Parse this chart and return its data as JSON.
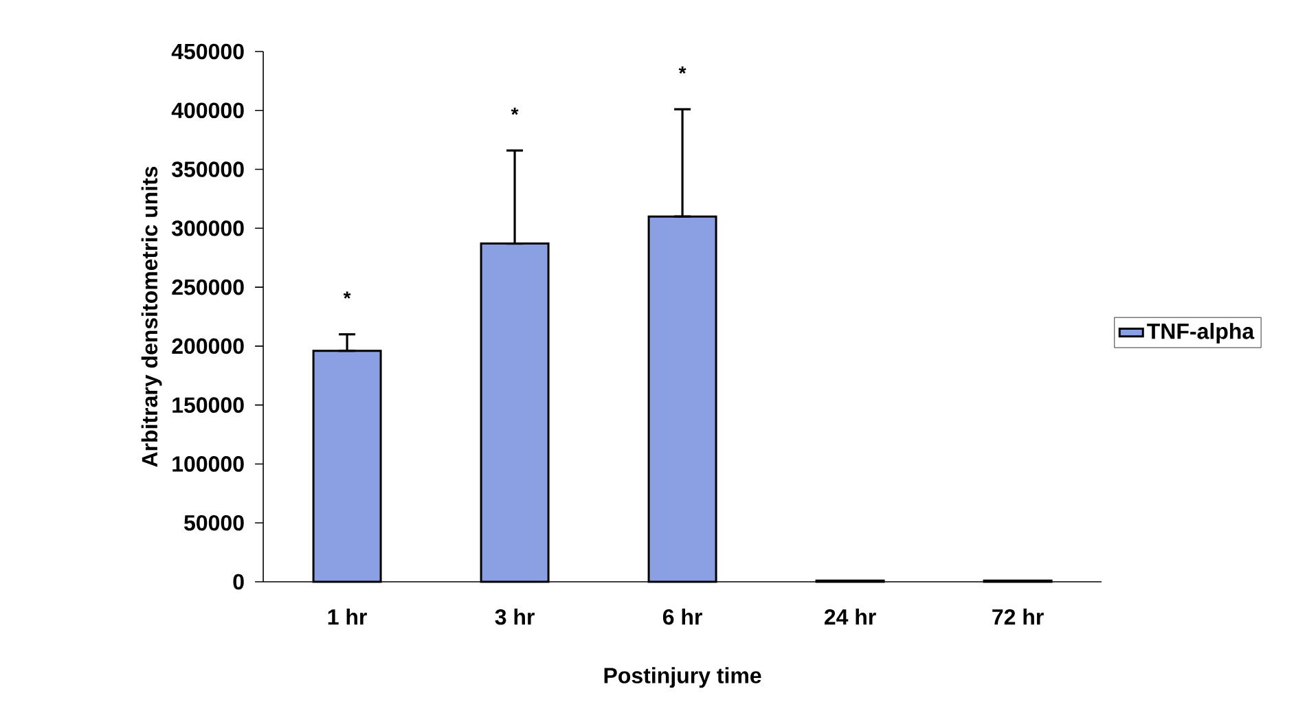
{
  "chart_data": {
    "type": "bar",
    "xlabel": "Postinjury time",
    "ylabel": "Arbitrary densitometric units",
    "categories": [
      "1 hr",
      "3 hr",
      "6 hr",
      "24 hr",
      "72 hr"
    ],
    "series": [
      {
        "name": "TNF-alpha",
        "color": "#8b9fe3",
        "values": [
          196000,
          287000,
          310000,
          1000,
          1000
        ],
        "errors": [
          [
            196000,
            210000
          ],
          [
            287000,
            366000
          ],
          [
            310000,
            401000
          ],
          null,
          null
        ]
      }
    ],
    "ylim": [
      0,
      450000
    ],
    "yticks": [
      0,
      50000,
      100000,
      150000,
      200000,
      250000,
      300000,
      350000,
      400000,
      450000
    ],
    "grid": false,
    "legend": "right",
    "annotations": [
      "*",
      "*",
      "*"
    ]
  }
}
